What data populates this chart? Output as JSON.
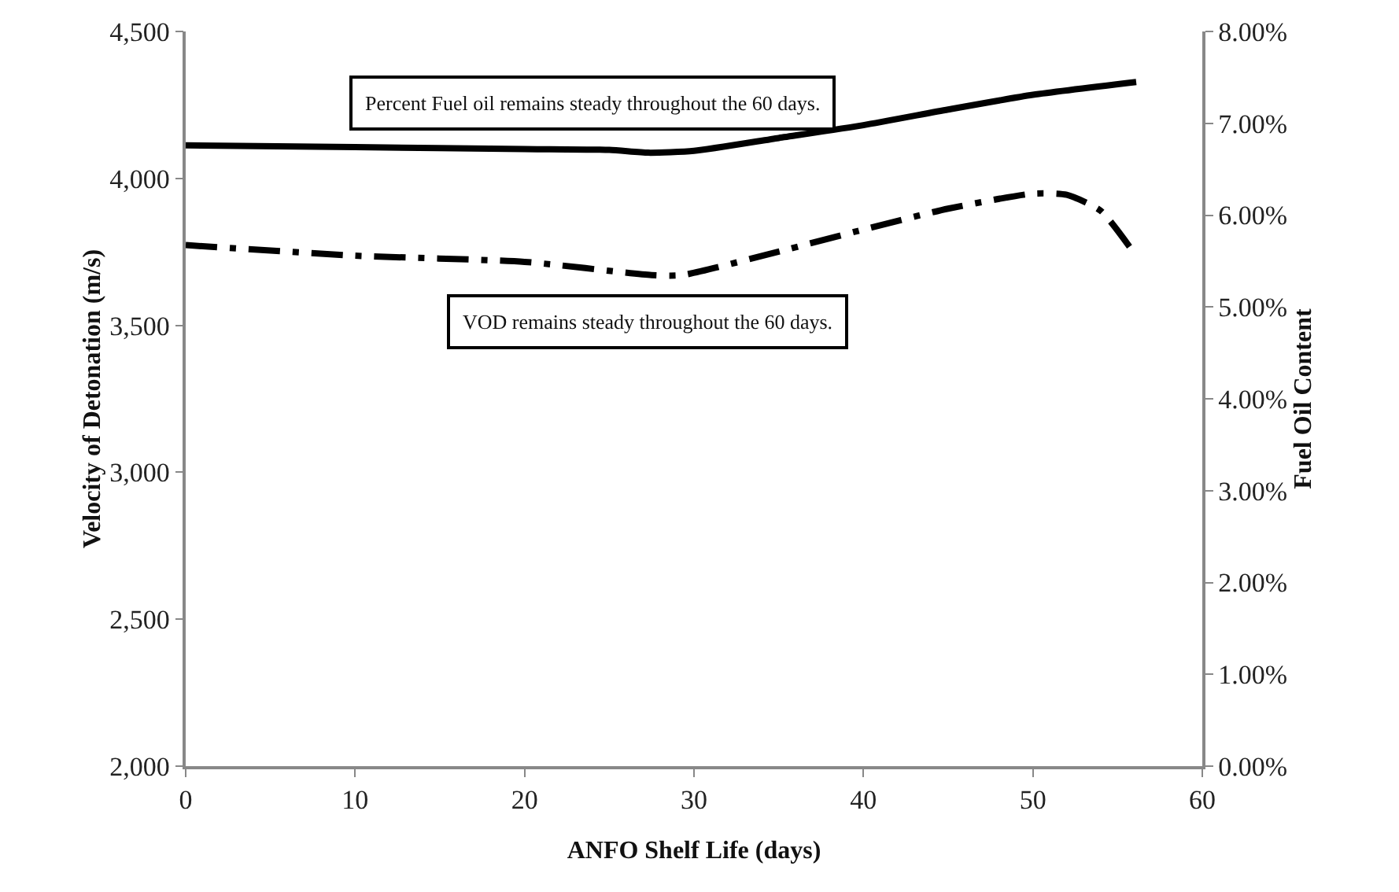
{
  "chart_data": {
    "type": "line",
    "xlabel": "ANFO Shelf Life (days)",
    "ylabel": "Velocity of Detonation (m/s)",
    "y2label": "Fuel Oil Content",
    "annotations": [
      "Percent Fuel oil remains steady throughout the 60 days.",
      "VOD remains steady throughout the 60 days."
    ],
    "series": [
      {
        "color": "#000000",
        "axis": "y2",
        "line_style": "solid",
        "x": [
          0,
          10,
          20,
          25,
          27.3,
          30,
          35,
          40,
          45,
          50,
          56.1
        ],
        "values": [
          6.76,
          6.74,
          6.72,
          6.71,
          6.68,
          6.7,
          6.84,
          6.98,
          7.15,
          7.31,
          7.45
        ]
      },
      {
        "color": "#000000",
        "axis": "y",
        "line_style": "dashed",
        "x": [
          0,
          10,
          20,
          27.5,
          29.3,
          35,
          40,
          45,
          50,
          52,
          54,
          56
        ],
        "values": [
          3773,
          3737,
          3716,
          3671,
          3671,
          3751,
          3826,
          3897,
          3948,
          3944,
          3890,
          3744
        ]
      }
    ],
    "xlim": [
      0,
      60
    ],
    "xticks": [
      0,
      10,
      20,
      30,
      40,
      50,
      60
    ],
    "ylim": [
      2000,
      4500
    ],
    "yticks": [
      {
        "value": 2000,
        "label": "2,000"
      },
      {
        "value": 2500,
        "label": "2,500"
      },
      {
        "value": 3000,
        "label": "3,000"
      },
      {
        "value": 3500,
        "label": "3,500"
      },
      {
        "value": 4000,
        "label": "4,000"
      },
      {
        "value": 4500,
        "label": "4,500"
      }
    ],
    "y2lim": [
      0,
      8
    ],
    "y2ticks": [
      {
        "value": 0,
        "label": "0.00%"
      },
      {
        "value": 1,
        "label": "1.00%"
      },
      {
        "value": 2,
        "label": "2.00%"
      },
      {
        "value": 3,
        "label": "3.00%"
      },
      {
        "value": 4,
        "label": "4.00%"
      },
      {
        "value": 5,
        "label": "5.00%"
      },
      {
        "value": 6,
        "label": "6.00%"
      },
      {
        "value": 7,
        "label": "7.00%"
      },
      {
        "value": 8,
        "label": "8.00%"
      }
    ],
    "grid": false,
    "marker": "none"
  }
}
